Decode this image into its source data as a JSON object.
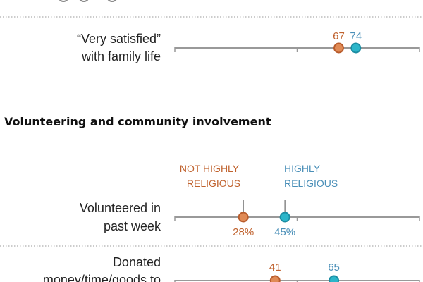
{
  "chart_data": {
    "type": "dot",
    "xlim": [
      0,
      100
    ],
    "series": [
      {
        "name": "NOT HIGHLY RELIGIOUS",
        "legend_lines": [
          "NOT HIGHLY",
          "RELIGIOUS"
        ],
        "color": "#e08a55",
        "stroke": "#b85c2c",
        "text_color": "#c0622e"
      },
      {
        "name": "HIGHLY RELIGIOUS",
        "legend_lines": [
          "HIGHLY",
          "RELIGIOUS"
        ],
        "color": "#2bb5c9",
        "stroke": "#1b8ca2",
        "text_color": "#4a8fb8"
      }
    ],
    "rows": [
      {
        "label_lines": [
          "“Very satisfied”",
          "with family life"
        ],
        "values": [
          67,
          74
        ],
        "value_labels": [
          "67",
          "74"
        ]
      },
      {
        "section": "Volunteering and community involvement"
      },
      {
        "label_lines": [
          "Volunteered in",
          "past week"
        ],
        "values": [
          28,
          45
        ],
        "value_labels": [
          "28%",
          "45%"
        ]
      },
      {
        "label_lines": [
          "Donated",
          "money/time/goods to"
        ],
        "values": [
          41,
          65
        ],
        "value_labels": [
          "41",
          "65"
        ]
      }
    ]
  }
}
